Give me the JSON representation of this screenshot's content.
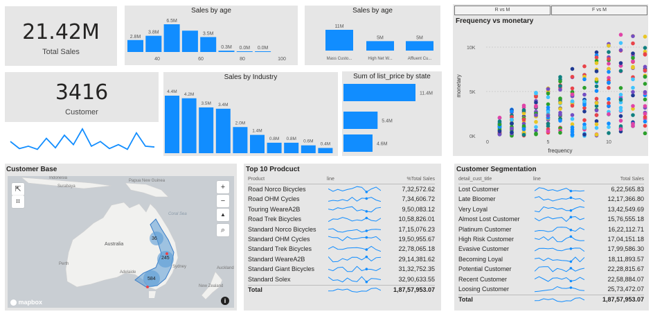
{
  "total_sales": {
    "value": "21.42M",
    "label": "Total Sales"
  },
  "customers": {
    "value": "3416",
    "label": "Customer"
  },
  "colors": {
    "bar": "#118dff",
    "tile": "#e6e6e6",
    "map_dot": "#5a9bd5"
  },
  "sales_by_age_1": {
    "title": "Sales by age",
    "chart_data": {
      "type": "bar",
      "title": "Sales by age",
      "values": [
        2.8,
        3.8,
        6.5,
        5.0,
        3.5,
        0.3,
        0.0,
        0.0
      ],
      "data_labels": [
        "2.8M",
        "3.8M",
        "6.5M",
        "",
        "3.5M",
        "0.3M",
        "0.0M",
        "0.0M"
      ],
      "x_ticks": [
        "40",
        "60",
        "80",
        "100"
      ]
    }
  },
  "sales_by_age_2": {
    "title": "Sales by age",
    "chart_data": {
      "type": "bar",
      "title": "Sales by age",
      "categories": [
        "Mass Custo...",
        "High Net W...",
        "Affluent Cu..."
      ],
      "values": [
        11,
        5,
        5
      ],
      "data_labels": [
        "11M",
        "5M",
        "5M"
      ]
    }
  },
  "sales_by_industry": {
    "title": "Sales by Industry",
    "chart_data": {
      "type": "bar",
      "title": "Sales by Industry",
      "values": [
        4.4,
        4.2,
        3.5,
        3.4,
        2.0,
        1.4,
        0.8,
        0.8,
        0.6,
        0.4
      ],
      "data_labels": [
        "4.4M",
        "4.2M",
        "3.5M",
        "3.4M",
        "2.0M",
        "1.4M",
        "0.8M",
        "0.8M",
        "0.6M",
        "0.4M"
      ]
    }
  },
  "sum_list_price": {
    "title": "Sum of list_price by state",
    "chart_data": {
      "type": "bar",
      "orientation": "horizontal",
      "title": "Sum of list_price by state",
      "values": [
        11.4,
        5.4,
        4.6
      ],
      "data_labels": [
        "11.4M",
        "5.4M",
        "4.6M"
      ]
    }
  },
  "customer_sparkline": {
    "chart_data": {
      "type": "line",
      "values": [
        14,
        5,
        8,
        4,
        18,
        6,
        22,
        10,
        30,
        8,
        14,
        5,
        10,
        4,
        25,
        8,
        7
      ]
    }
  },
  "scatter": {
    "buttons": [
      "R vs M",
      "F vs M"
    ],
    "title": "Frequency vs monetary",
    "chart_data": {
      "type": "scatter",
      "title": "Frequency vs monetary",
      "xlabel": "frequency",
      "ylabel": "monetary",
      "x_ticks": [
        "0",
        "5",
        "10"
      ],
      "y_ticks": [
        "0K",
        "5K",
        "10K"
      ],
      "xlim": [
        -1,
        15
      ],
      "ylim": [
        -500,
        13000
      ],
      "series_colors": [
        "#e8c626",
        "#e044a7",
        "#118dff",
        "#2ca02c",
        "#40c4ff",
        "#108080",
        "#e8444a",
        "#1f3a93",
        "#744ec2"
      ]
    }
  },
  "map": {
    "title": "Customer Base",
    "labels": {
      "indonesia": "Indonesia",
      "surabaya": "Surabaya",
      "png": "Papua New Guinea",
      "coral": "Coral Sea",
      "australia": "Australia",
      "perth": "Perth",
      "adelaide": "Adelaide",
      "sydney": "Sydney",
      "auckland": "Auckland",
      "nz": "New Zealand",
      "logo": "mapbox"
    },
    "bubbles": [
      "36",
      "245",
      "584"
    ],
    "controls": {
      "zoom_in": "+",
      "zoom_out": "−",
      "compass": "▲",
      "search": "⌕",
      "info": "i"
    }
  },
  "top10": {
    "title": "Top 10 Prodcuct",
    "headers": [
      "Product",
      "line",
      "%Total Sales"
    ],
    "rows": [
      {
        "name": "Road Norco Bicycles",
        "value": "7,32,572.62"
      },
      {
        "name": "Road OHM Cycles",
        "value": "7,34,606.72"
      },
      {
        "name": "Touring WeareA2B",
        "value": "9,50,083.12"
      },
      {
        "name": "Road Trek Bicycles",
        "value": "10,58,826.01"
      },
      {
        "name": "Standard Norco Bicycles",
        "value": "17,15,076.23"
      },
      {
        "name": "Standard OHM Cycles",
        "value": "19,50,955.67"
      },
      {
        "name": "Standard Trek Bicycles",
        "value": "22,78,065.18"
      },
      {
        "name": "Standard WeareA2B",
        "value": "29,14,381.62"
      },
      {
        "name": "Standard Giant Bicycles",
        "value": "31,32,752.35"
      },
      {
        "name": "Standard Solex",
        "value": "32,90,633.55"
      }
    ],
    "total": {
      "name": "Total",
      "value": "1,87,57,953.07"
    }
  },
  "segmentation": {
    "title": "Customer Segmentation",
    "headers": [
      "detail_cust_title",
      "line",
      "Total Sales"
    ],
    "rows": [
      {
        "name": "Lost Customer",
        "value": "6,22,565.83"
      },
      {
        "name": "Late Bloomer",
        "value": "12,17,366.80"
      },
      {
        "name": "Very Loyal",
        "value": "13,42,549.69"
      },
      {
        "name": "Almost Lost Customer",
        "value": "15,76,555.18"
      },
      {
        "name": "Platinum Customer",
        "value": "16,22,112.71"
      },
      {
        "name": "High Risk Customer",
        "value": "17,04,151.18"
      },
      {
        "name": "Evasive Customer",
        "value": "17,99,586.30"
      },
      {
        "name": "Becoming Loyal",
        "value": "18,11,893.57"
      },
      {
        "name": "Potential Customer",
        "value": "22,28,815.67"
      },
      {
        "name": "Recent Customer",
        "value": "22,58,884.07"
      },
      {
        "name": "Loosing Customer",
        "value": "25,73,472.07"
      }
    ],
    "total": {
      "name": "Total",
      "value": "1,87,57,953.07"
    }
  }
}
